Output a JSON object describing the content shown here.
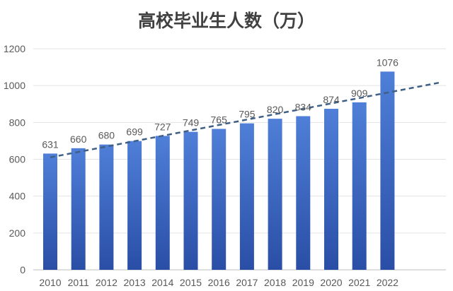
{
  "chart_data": {
    "type": "bar",
    "title": "高校毕业生人数（万）",
    "xlabel": "",
    "ylabel": "",
    "categories": [
      "2010",
      "2011",
      "2012",
      "2013",
      "2014",
      "2015",
      "2016",
      "2017",
      "2018",
      "2019",
      "2020",
      "2021",
      "2022"
    ],
    "values": [
      631,
      660,
      680,
      699,
      727,
      749,
      765,
      795,
      820,
      834,
      874,
      909,
      1076
    ],
    "ylim": [
      0,
      1200
    ],
    "yticks": [
      0,
      200,
      400,
      600,
      800,
      1000,
      1200
    ],
    "grid": true,
    "data_labels": true,
    "trendline": "linear",
    "colors": {
      "bar_top": "#4f7fd8",
      "bar_bottom": "#2a4ea6",
      "trend": "#3f5f85"
    }
  }
}
